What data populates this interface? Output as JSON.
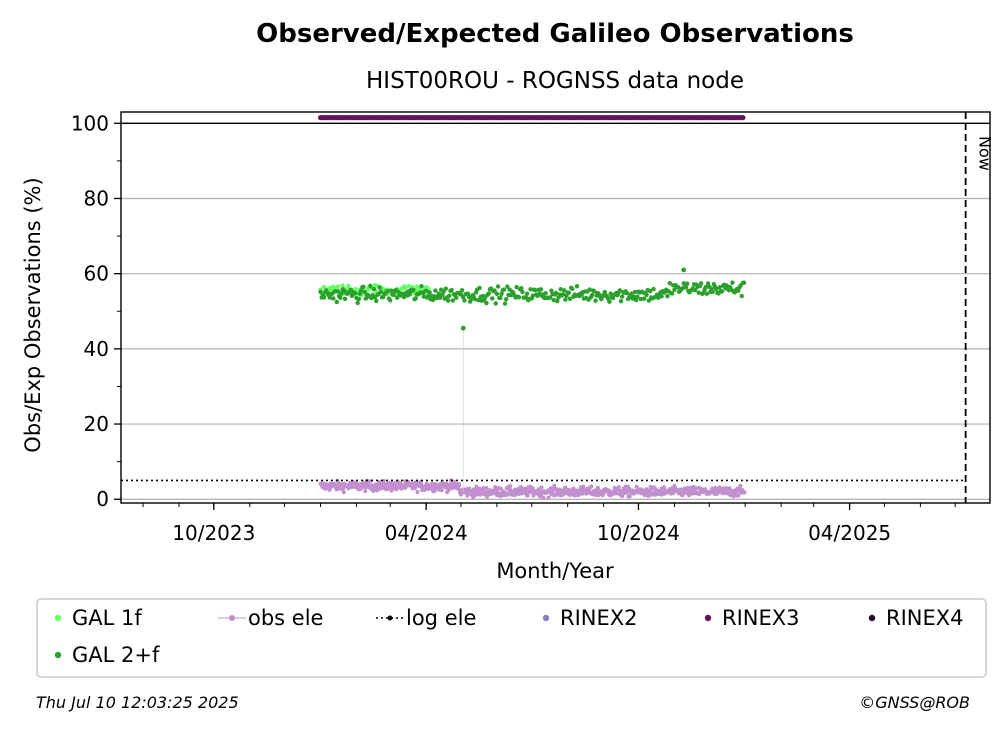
{
  "chart_data": {
    "type": "scatter",
    "title": "Observed/Expected Galileo Observations",
    "subtitle": "HIST00ROU - ROGNSS data node",
    "xlabel": "Month/Year",
    "ylabel": "Obs/Exp Observations (%)",
    "x_tick_labels": [
      "10/2023",
      "04/2024",
      "10/2024",
      "04/2025"
    ],
    "x_tick_dates": [
      "2023-10-01",
      "2024-04-01",
      "2024-10-01",
      "2025-04-01"
    ],
    "xlim": [
      "2023-07-13",
      "2025-07-31"
    ],
    "ylim": [
      -1,
      103
    ],
    "y_ticks": [
      0,
      20,
      40,
      60,
      80,
      100
    ],
    "grid": "y",
    "now_label": "Now",
    "now_date": "2025-07-10",
    "log_ele_threshold": 5,
    "data_start": "2024-01-01",
    "data_end": "2024-12-31",
    "gal_2f_mean": 54.5,
    "gal_1f_mean": 55.5,
    "obs_ele_mean": 2,
    "rinex3_level": 101.5,
    "outliers": [
      {
        "series": "GAL 2+f",
        "date": "2024-05-03",
        "value": 45.5
      },
      {
        "series": "GAL 2+f",
        "date": "2024-11-09",
        "value": 61
      }
    ],
    "series": [
      {
        "name": "GAL 1f",
        "color": "#66ff66",
        "marker": "dot"
      },
      {
        "name": "GAL 2+f",
        "color": "#2ca02c",
        "marker": "dot"
      },
      {
        "name": "obs ele",
        "color": "#c28fcf",
        "marker": "dot-line"
      },
      {
        "name": "log ele",
        "color": "#000000",
        "marker": "dotted-line"
      },
      {
        "name": "RINEX2",
        "color": "#8c7dbf",
        "marker": "dot"
      },
      {
        "name": "RINEX3",
        "color": "#6b0f5f",
        "marker": "dot"
      },
      {
        "name": "RINEX4",
        "color": "#2a0a22",
        "marker": "dot"
      }
    ],
    "legend_position": "bottom"
  },
  "footer": {
    "timestamp": "Thu Jul 10 12:03:25 2025",
    "credit": "©GNSS@ROB"
  }
}
